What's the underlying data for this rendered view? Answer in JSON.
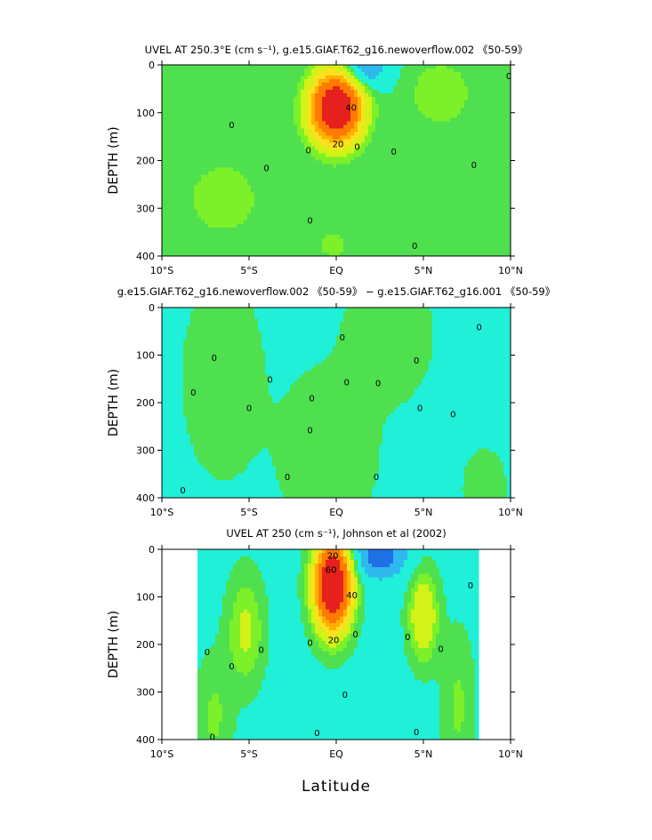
{
  "figure": {
    "xlabel": "Latitude"
  },
  "chart_data": [
    {
      "type": "heatmap",
      "title": "UVEL AT 250.3°E (cm s⁻¹), g.e15.GIAF.T62_g16.newoverflow.002 《50-59》",
      "ylabel": "DEPTH (m)",
      "xlim": [
        -10,
        10
      ],
      "ylim": [
        400,
        0
      ],
      "xticks": [
        "10°S",
        "5°S",
        "EQ",
        "5°N",
        "10°N"
      ],
      "yticks": [
        "0",
        "100",
        "200",
        "300",
        "400"
      ],
      "field": {
        "background": 0,
        "features": [
          {
            "kind": "jet",
            "lat": 0.0,
            "depth": 90,
            "peak": 90,
            "half_width_lat": 1.4,
            "half_width_depth": 70
          },
          {
            "kind": "low",
            "lat": 1.6,
            "depth": 10,
            "peak": -20,
            "half_width_lat": 1.3,
            "half_width_depth": 40
          },
          {
            "kind": "high",
            "lat": 6.0,
            "depth": 60,
            "peak": 10,
            "half_width_lat": 1.8,
            "half_width_depth": 70
          },
          {
            "kind": "high",
            "lat": -6.5,
            "depth": 280,
            "peak": 6,
            "half_width_lat": 4.0,
            "half_width_depth": 150
          },
          {
            "kind": "high",
            "lat": 0.0,
            "depth": 380,
            "peak": 5,
            "half_width_lat": 2.5,
            "half_width_depth": 90
          }
        ]
      },
      "contour_labels": [
        {
          "text": "0",
          "lat": -6.0,
          "depth": 125
        },
        {
          "text": "0",
          "lat": -4.0,
          "depth": 215
        },
        {
          "text": "0",
          "lat": -1.5,
          "depth": 325
        },
        {
          "text": "0",
          "lat": -1.6,
          "depth": 178
        },
        {
          "text": "0",
          "lat": 1.2,
          "depth": 170
        },
        {
          "text": "0",
          "lat": 3.3,
          "depth": 180
        },
        {
          "text": "0",
          "lat": 4.5,
          "depth": 378
        },
        {
          "text": "0",
          "lat": 7.9,
          "depth": 208
        },
        {
          "text": "0",
          "lat": 9.9,
          "depth": 22
        },
        {
          "text": "20",
          "lat": 0.1,
          "depth": 165
        },
        {
          "text": "40",
          "lat": 0.85,
          "depth": 88
        }
      ]
    },
    {
      "type": "heatmap",
      "title": "g.e15.GIAF.T62_g16.newoverflow.002 《50-59》 − g.e15.GIAF.T62_g16.001 《50-59》",
      "ylabel": "DEPTH (m)",
      "xlim": [
        -10,
        10
      ],
      "ylim": [
        400,
        0
      ],
      "xticks": [
        "10°S",
        "5°S",
        "EQ",
        "5°N",
        "10°N"
      ],
      "yticks": [
        "0",
        "100",
        "200",
        "300",
        "400"
      ],
      "field": {
        "background": -1,
        "features": [
          {
            "kind": "high",
            "lat": -6.5,
            "depth": 150,
            "peak": 4,
            "half_width_lat": 2.0,
            "half_width_depth": 180
          },
          {
            "kind": "high",
            "lat": -0.5,
            "depth": 300,
            "peak": 4,
            "half_width_lat": 2.5,
            "half_width_depth": 150
          },
          {
            "kind": "high",
            "lat": 3.0,
            "depth": 60,
            "peak": 4,
            "half_width_lat": 2.2,
            "half_width_depth": 120
          },
          {
            "kind": "high",
            "lat": 8.5,
            "depth": 380,
            "peak": 3,
            "half_width_lat": 1.2,
            "half_width_depth": 80
          }
        ]
      },
      "contour_labels": [
        {
          "text": "0",
          "lat": -7.0,
          "depth": 105
        },
        {
          "text": "0",
          "lat": -8.2,
          "depth": 178
        },
        {
          "text": "0",
          "lat": -5.0,
          "depth": 210
        },
        {
          "text": "0",
          "lat": -3.8,
          "depth": 150
        },
        {
          "text": "0",
          "lat": -1.4,
          "depth": 190
        },
        {
          "text": "0",
          "lat": -1.5,
          "depth": 257
        },
        {
          "text": "0",
          "lat": -2.8,
          "depth": 355
        },
        {
          "text": "0",
          "lat": 0.6,
          "depth": 156
        },
        {
          "text": "0",
          "lat": 2.4,
          "depth": 158
        },
        {
          "text": "0",
          "lat": 2.3,
          "depth": 355
        },
        {
          "text": "0",
          "lat": 4.8,
          "depth": 210
        },
        {
          "text": "0",
          "lat": 6.7,
          "depth": 223
        },
        {
          "text": "0",
          "lat": 8.2,
          "depth": 40
        },
        {
          "text": "0",
          "lat": 4.6,
          "depth": 110
        },
        {
          "text": "0",
          "lat": -8.8,
          "depth": 383
        },
        {
          "text": "0",
          "lat": 0.35,
          "depth": 62
        }
      ]
    },
    {
      "type": "heatmap",
      "title": "UVEL AT 250 (cm s⁻¹), Johnson et al (2002)",
      "ylabel": "DEPTH (m)",
      "xlim": [
        -10,
        10
      ],
      "ylim": [
        400,
        0
      ],
      "xticks": [
        "10°S",
        "5°S",
        "EQ",
        "5°N",
        "10°N"
      ],
      "yticks": [
        "0",
        "100",
        "200",
        "300",
        "400"
      ],
      "data_lat_range": [
        -8.0,
        8.2
      ],
      "field": {
        "background": -2,
        "features": [
          {
            "kind": "jet",
            "lat": -0.2,
            "depth": 75,
            "peak": 95,
            "half_width_lat": 1.0,
            "half_width_depth": 90
          },
          {
            "kind": "low",
            "lat": 2.5,
            "depth": 10,
            "peak": -25,
            "half_width_lat": 1.5,
            "half_width_depth": 50
          },
          {
            "kind": "high",
            "lat": -5.2,
            "depth": 170,
            "peak": 14,
            "half_width_lat": 1.0,
            "half_width_depth": 110
          },
          {
            "kind": "high",
            "lat": 5.0,
            "depth": 140,
            "peak": 22,
            "half_width_lat": 0.8,
            "half_width_depth": 90
          },
          {
            "kind": "high",
            "lat": -7.0,
            "depth": 350,
            "peak": 8,
            "half_width_lat": 1.0,
            "half_width_depth": 120
          },
          {
            "kind": "high",
            "lat": 7.0,
            "depth": 330,
            "peak": 8,
            "half_width_lat": 0.9,
            "half_width_depth": 150
          }
        ]
      },
      "contour_labels": [
        {
          "text": "0",
          "lat": -7.4,
          "depth": 215
        },
        {
          "text": "0",
          "lat": -6.0,
          "depth": 245
        },
        {
          "text": "0",
          "lat": -4.3,
          "depth": 210
        },
        {
          "text": "0",
          "lat": -7.1,
          "depth": 393
        },
        {
          "text": "0",
          "lat": -1.5,
          "depth": 195
        },
        {
          "text": "0",
          "lat": 0.5,
          "depth": 305
        },
        {
          "text": "0",
          "lat": 1.1,
          "depth": 178
        },
        {
          "text": "0",
          "lat": 4.1,
          "depth": 183
        },
        {
          "text": "0",
          "lat": 6.0,
          "depth": 208
        },
        {
          "text": "0",
          "lat": 7.7,
          "depth": 75
        },
        {
          "text": "0",
          "lat": 4.6,
          "depth": 383
        },
        {
          "text": "0",
          "lat": -1.1,
          "depth": 385
        },
        {
          "text": "20",
          "lat": -0.2,
          "depth": 12
        },
        {
          "text": "60",
          "lat": -0.3,
          "depth": 42
        },
        {
          "text": "40",
          "lat": 0.9,
          "depth": 95
        },
        {
          "text": "20",
          "lat": -0.15,
          "depth": 190
        }
      ]
    }
  ],
  "colors": {
    "strong_negative": "#1f6fe6",
    "negative": "#2fb8ee",
    "near_zero": "#20f0d8",
    "weak_positive": "#4ee04e",
    "positive": "#7cf028",
    "moderate": "#d2f218",
    "high": "#ffe020",
    "higher": "#ffb000",
    "very_high": "#ff7a00",
    "max": "#e6201c"
  }
}
